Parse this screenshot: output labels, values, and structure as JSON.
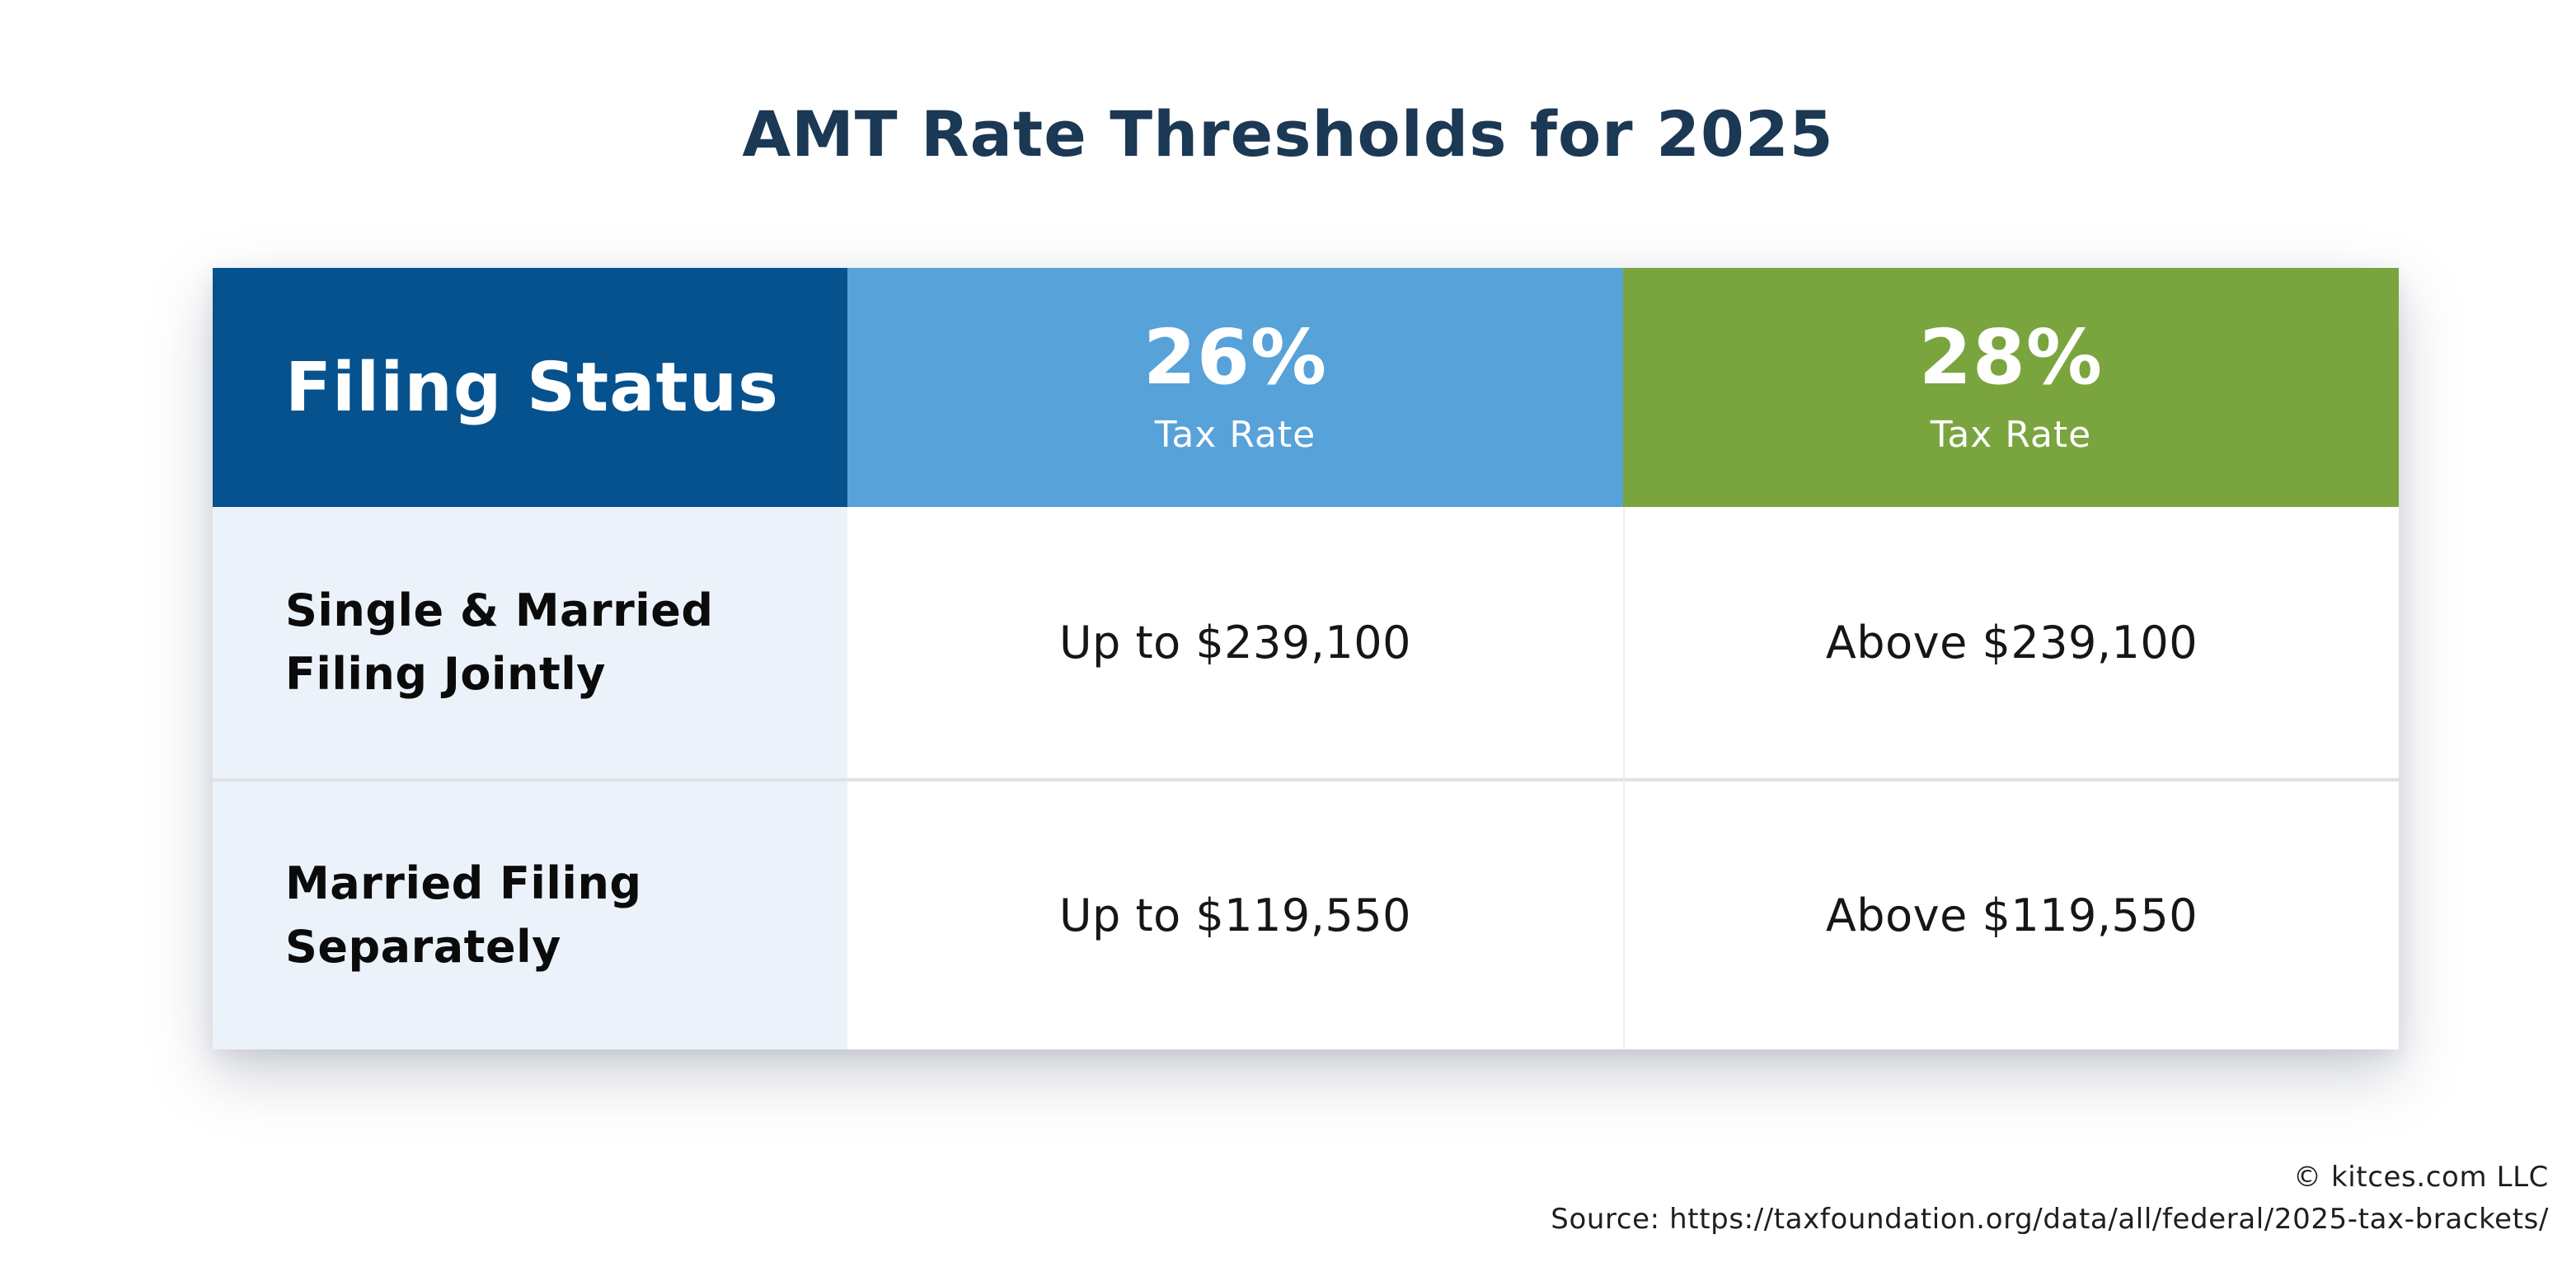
{
  "title": "AMT Rate Thresholds for 2025",
  "table": {
    "filing_status_header": "Filing Status",
    "rate_columns": [
      {
        "rate": "26%",
        "label": "Tax Rate"
      },
      {
        "rate": "28%",
        "label": "Tax Rate"
      }
    ],
    "rows": [
      {
        "filing_status_lines": [
          "Single & Married",
          "Filing Jointly"
        ],
        "rate26_threshold": "Up to $239,100",
        "rate28_threshold": "Above $239,100"
      },
      {
        "filing_status_lines": [
          "Married Filing",
          "Separately"
        ],
        "rate26_threshold": "Up to $119,550",
        "rate28_threshold": "Above $119,550"
      }
    ]
  },
  "footer": {
    "copyright": "© kitces.com LLC",
    "source": "Source: https://taxfoundation.org/data/all/federal/2025-tax-brackets/"
  },
  "colors": {
    "title_text": "#1B3854",
    "header_filing_bg": "#06528E",
    "header_26_bg": "#57A2D8",
    "header_28_bg": "#7AA53E",
    "row_label_bg": "#ECF2FA",
    "row_divider": "#E2E2E2",
    "column_divider": "#EFEFEF",
    "header_text": "#FFFFFF",
    "body_text": "#161616",
    "footer_text": "#1F1F1F"
  },
  "chart_data": {
    "type": "table",
    "title": "AMT Rate Thresholds for 2025",
    "columns": [
      "Filing Status",
      "26% Tax Rate",
      "28% Tax Rate"
    ],
    "rows": [
      [
        "Single & Married Filing Jointly",
        "Up to $239,100",
        "Above $239,100"
      ],
      [
        "Married Filing Separately",
        "Up to $119,550",
        "Above $119,550"
      ]
    ],
    "thresholds_numeric": {
      "single_and_married_filing_jointly": 239100,
      "married_filing_separately": 119550
    },
    "tax_rates_percent": [
      26,
      28
    ]
  }
}
